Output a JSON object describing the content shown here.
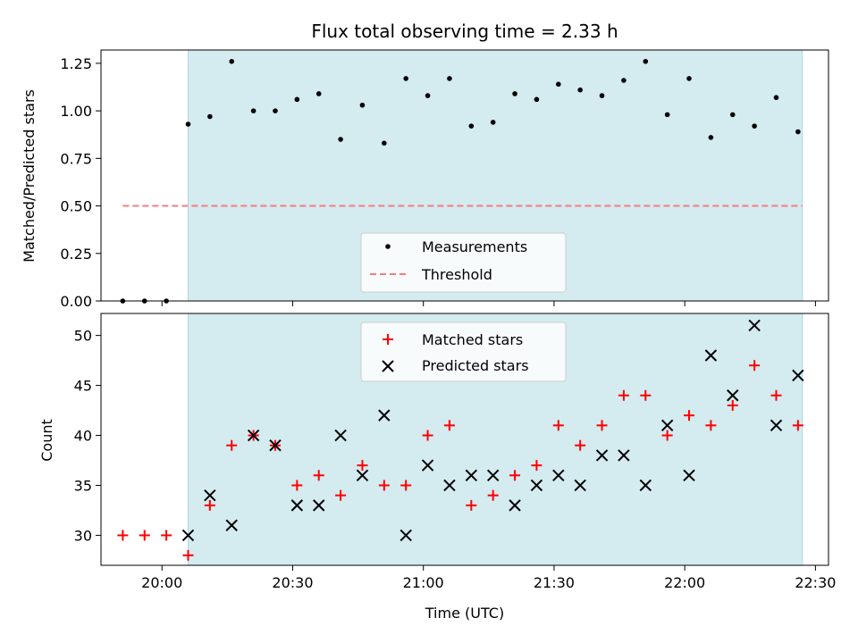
{
  "chart_data": [
    {
      "type": "scatter",
      "title": "Flux total observing time = 2.33 h",
      "xlabel": "",
      "ylabel": "Matched/Predicted stars",
      "ylim": [
        0,
        1.32
      ],
      "yticks": [
        "0.00",
        "0.25",
        "0.50",
        "0.75",
        "1.00",
        "1.25"
      ],
      "ytick_values": [
        0,
        0.25,
        0.5,
        0.75,
        1.0,
        1.25
      ],
      "xlim": [
        "19:46",
        "22:33"
      ],
      "shaded_region": {
        "from": "20:06",
        "to": "22:27",
        "color": "#d4ebf0"
      },
      "series": [
        {
          "name": "Measurements",
          "marker": "dot",
          "color": "#000000",
          "x": [
            "19:51",
            "19:56",
            "20:01",
            "20:06",
            "20:11",
            "20:16",
            "20:21",
            "20:26",
            "20:31",
            "20:36",
            "20:41",
            "20:46",
            "20:51",
            "20:56",
            "21:01",
            "21:06",
            "21:11",
            "21:16",
            "21:21",
            "21:26",
            "21:31",
            "21:36",
            "21:41",
            "21:46",
            "21:51",
            "21:56",
            "22:01",
            "22:06",
            "22:11",
            "22:16",
            "22:21",
            "22:26"
          ],
          "y": [
            0,
            0,
            0,
            0.93,
            0.97,
            1.26,
            1.0,
            1.0,
            1.06,
            1.09,
            0.85,
            1.03,
            0.83,
            1.17,
            1.08,
            1.17,
            0.92,
            0.94,
            1.09,
            1.06,
            1.14,
            1.11,
            1.08,
            1.16,
            1.26,
            0.98,
            1.17,
            0.86,
            0.98,
            0.92,
            1.07,
            0.89
          ]
        },
        {
          "name": "Threshold",
          "style": "dashed",
          "color": "#f47c7c",
          "x": [
            "19:51",
            "22:27"
          ],
          "y": [
            0.5,
            0.5
          ]
        }
      ],
      "legend": "lower center"
    },
    {
      "type": "scatter",
      "xlabel": "Time (UTC)",
      "ylabel": "Count",
      "ylim": [
        27,
        52.2
      ],
      "yticks": [
        "30",
        "35",
        "40",
        "45",
        "50"
      ],
      "ytick_values": [
        30,
        35,
        40,
        45,
        50
      ],
      "xticks": [
        "20:00",
        "20:30",
        "21:00",
        "21:30",
        "22:00",
        "22:30"
      ],
      "xlim": [
        "19:46",
        "22:33"
      ],
      "shaded_region": {
        "from": "20:06",
        "to": "22:27",
        "color": "#d4ebf0"
      },
      "series": [
        {
          "name": "Matched stars",
          "marker": "plus",
          "color": "#ff0000",
          "x": [
            "19:51",
            "19:56",
            "20:01",
            "20:06",
            "20:11",
            "20:16",
            "20:21",
            "20:26",
            "20:31",
            "20:36",
            "20:41",
            "20:46",
            "20:51",
            "20:56",
            "21:01",
            "21:06",
            "21:11",
            "21:16",
            "21:21",
            "21:26",
            "21:31",
            "21:36",
            "21:41",
            "21:46",
            "21:51",
            "21:56",
            "22:01",
            "22:06",
            "22:11",
            "22:16",
            "22:21",
            "22:26"
          ],
          "y": [
            30,
            30,
            30,
            28,
            33,
            39,
            40,
            39,
            35,
            36,
            34,
            37,
            35,
            35,
            40,
            41,
            33,
            34,
            36,
            37,
            41,
            39,
            41,
            44,
            44,
            40,
            42,
            41,
            43,
            47,
            44,
            41
          ]
        },
        {
          "name": "Predicted stars",
          "marker": "x",
          "color": "#000000",
          "x": [
            "20:06",
            "20:11",
            "20:16",
            "20:21",
            "20:26",
            "20:31",
            "20:36",
            "20:41",
            "20:46",
            "20:51",
            "20:56",
            "21:01",
            "21:06",
            "21:11",
            "21:16",
            "21:21",
            "21:26",
            "21:31",
            "21:36",
            "21:41",
            "21:46",
            "21:51",
            "21:56",
            "22:01",
            "22:06",
            "22:11",
            "22:16",
            "22:21",
            "22:26"
          ],
          "y": [
            30,
            34,
            31,
            40,
            39,
            33,
            33,
            40,
            36,
            42,
            30,
            37,
            35,
            36,
            36,
            33,
            35,
            36,
            35,
            38,
            38,
            35,
            41,
            36,
            48,
            44,
            51,
            41,
            46
          ]
        }
      ],
      "legend": "upper center"
    }
  ]
}
